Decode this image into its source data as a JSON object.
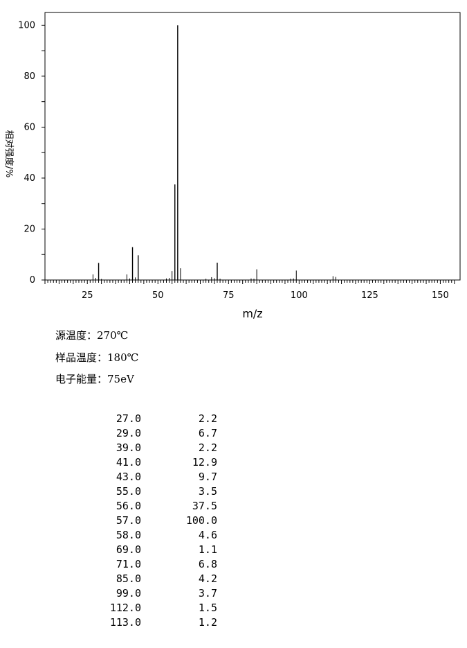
{
  "chart_data": {
    "type": "bar",
    "xlabel": "m/z",
    "ylabel": "相对强度/%",
    "xlim": [
      10,
      157
    ],
    "ylim": [
      0,
      105
    ],
    "x_ticks": [
      25,
      50,
      75,
      100,
      125,
      150
    ],
    "y_ticks": [
      0,
      20,
      40,
      60,
      80,
      100
    ],
    "grid": false,
    "peaks": [
      {
        "mz": 27,
        "intensity": 2.2
      },
      {
        "mz": 28,
        "intensity": 0.8
      },
      {
        "mz": 29,
        "intensity": 6.7
      },
      {
        "mz": 30,
        "intensity": 0.4
      },
      {
        "mz": 39,
        "intensity": 2.2
      },
      {
        "mz": 40,
        "intensity": 0.6
      },
      {
        "mz": 41,
        "intensity": 12.9
      },
      {
        "mz": 42,
        "intensity": 1.0
      },
      {
        "mz": 43,
        "intensity": 9.7
      },
      {
        "mz": 53,
        "intensity": 0.6
      },
      {
        "mz": 54,
        "intensity": 0.8
      },
      {
        "mz": 55,
        "intensity": 3.5
      },
      {
        "mz": 56,
        "intensity": 37.5
      },
      {
        "mz": 57,
        "intensity": 100.0
      },
      {
        "mz": 58,
        "intensity": 4.6
      },
      {
        "mz": 67,
        "intensity": 0.5
      },
      {
        "mz": 69,
        "intensity": 1.1
      },
      {
        "mz": 70,
        "intensity": 0.7
      },
      {
        "mz": 71,
        "intensity": 6.8
      },
      {
        "mz": 72,
        "intensity": 0.5
      },
      {
        "mz": 83,
        "intensity": 0.6
      },
      {
        "mz": 84,
        "intensity": 0.5
      },
      {
        "mz": 85,
        "intensity": 4.2
      },
      {
        "mz": 97,
        "intensity": 0.5
      },
      {
        "mz": 98,
        "intensity": 0.6
      },
      {
        "mz": 99,
        "intensity": 3.7
      },
      {
        "mz": 112,
        "intensity": 1.5
      },
      {
        "mz": 113,
        "intensity": 1.2
      }
    ]
  },
  "conditions": {
    "source_temp": "源温度：270℃",
    "sample_temp": "样品温度：180℃",
    "electron_energy": "电子能量：75eV"
  },
  "peak_table": [
    [
      "27.0",
      "2.2"
    ],
    [
      "29.0",
      "6.7"
    ],
    [
      "39.0",
      "2.2"
    ],
    [
      "41.0",
      "12.9"
    ],
    [
      "43.0",
      "9.7"
    ],
    [
      "55.0",
      "3.5"
    ],
    [
      "56.0",
      "37.5"
    ],
    [
      "57.0",
      "100.0"
    ],
    [
      "58.0",
      "4.6"
    ],
    [
      "69.0",
      "1.1"
    ],
    [
      "71.0",
      "6.8"
    ],
    [
      "85.0",
      "4.2"
    ],
    [
      "99.0",
      "3.7"
    ],
    [
      "112.0",
      "1.5"
    ],
    [
      "113.0",
      "1.2"
    ]
  ]
}
